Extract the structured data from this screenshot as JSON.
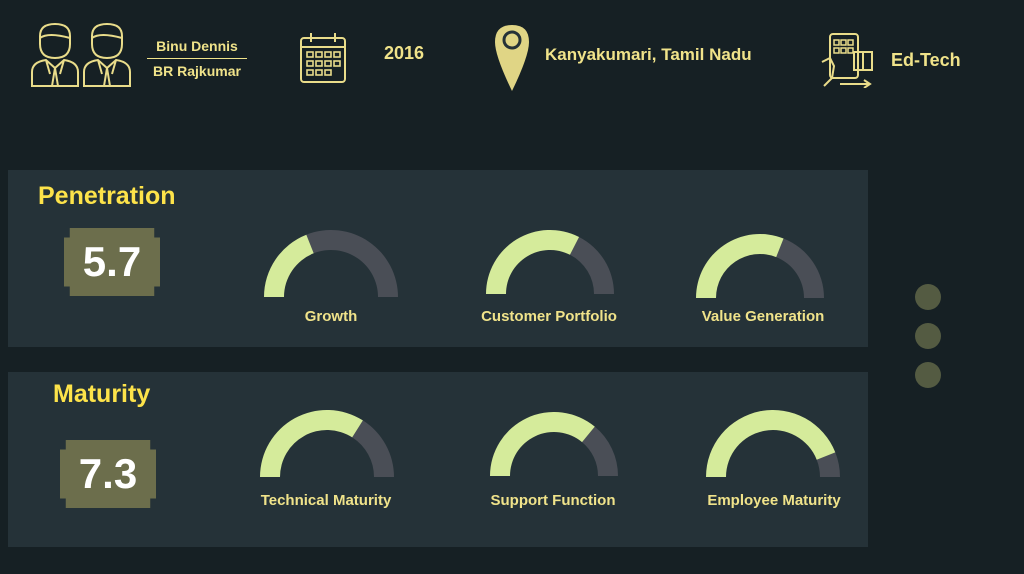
{
  "header": {
    "founders": [
      "Binu Dennis",
      "BR Rajkumar"
    ],
    "year": "2016",
    "location": "Kanyakumari, Tamil Nadu",
    "sector": "Ed-Tech"
  },
  "colors": {
    "background": "#162024",
    "panel": "#253238",
    "accent_yellow": "#fde34a",
    "gauge_fill": "#d5eb9b",
    "gauge_track": "#4a4e56",
    "score_box": "#6c6e4c"
  },
  "sections": [
    {
      "title": "Penetration",
      "score": "5.7",
      "gauges": [
        {
          "label": "Growth",
          "fraction": 0.38
        },
        {
          "label": "Customer Portfolio",
          "fraction": 0.65
        },
        {
          "label": "Value Generation",
          "fraction": 0.62
        }
      ]
    },
    {
      "title": "Maturity",
      "score": "7.3",
      "gauges": [
        {
          "label": "Technical Maturity",
          "fraction": 0.68
        },
        {
          "label": "Support Function",
          "fraction": 0.72
        },
        {
          "label": "Employee Maturity",
          "fraction": 0.88
        }
      ]
    }
  ]
}
